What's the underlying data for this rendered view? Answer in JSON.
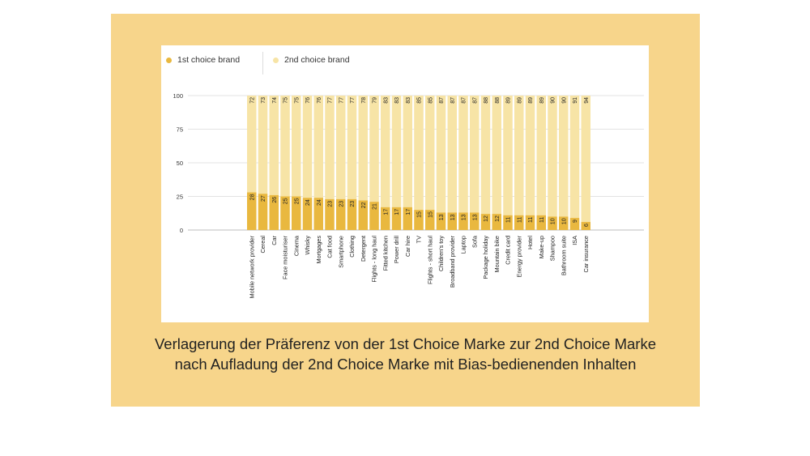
{
  "chart_data": {
    "type": "bar",
    "stacked": true,
    "legend_position": "top-left",
    "categories": [
      "Mobile network provider",
      "Cereal",
      "Car",
      "Face moisturiser",
      "Cinema",
      "Whisky",
      "Mortgages",
      "Cat food",
      "Smartphone",
      "Clothing",
      "Detergent",
      "Flights - long haul",
      "Fitted kitchen",
      "Power drill",
      "Car hire",
      "TV",
      "Flights - short haul",
      "Children's toy",
      "Broadband provider",
      "Laptop",
      "Sofa",
      "Package holiday",
      "Mountain bike",
      "Credit card",
      "Energy provider",
      "Hotel",
      "Make-up",
      "Shampoo",
      "Bathroom suite",
      "ISA",
      "Car insurance"
    ],
    "series": [
      {
        "name": "1st choice brand",
        "color": "#e9b83f",
        "values": [
          28,
          27,
          26,
          25,
          25,
          24,
          24,
          23,
          23,
          23,
          22,
          21,
          17,
          17,
          17,
          15,
          15,
          13,
          13,
          13,
          13,
          12,
          12,
          11,
          11,
          11,
          11,
          10,
          10,
          9,
          6
        ]
      },
      {
        "name": "2nd choice brand",
        "color": "#f7e4a6",
        "values": [
          72,
          73,
          74,
          75,
          75,
          76,
          76,
          77,
          77,
          77,
          78,
          79,
          83,
          83,
          83,
          85,
          85,
          87,
          87,
          87,
          87,
          88,
          88,
          89,
          89,
          89,
          89,
          90,
          90,
          91,
          94
        ]
      }
    ],
    "yticks": [
      0,
      25,
      50,
      75,
      100
    ],
    "ylim": [
      0,
      100
    ],
    "grid": true,
    "xlabel": "",
    "ylabel": "",
    "title": ""
  },
  "caption": {
    "line1": "Verlagerung der Präferenz von der 1st Choice Marke zur 2nd Choice Marke",
    "line2": "nach Aufladung der 2nd Choice Marke mit Bias-bedienenden Inhalten"
  }
}
